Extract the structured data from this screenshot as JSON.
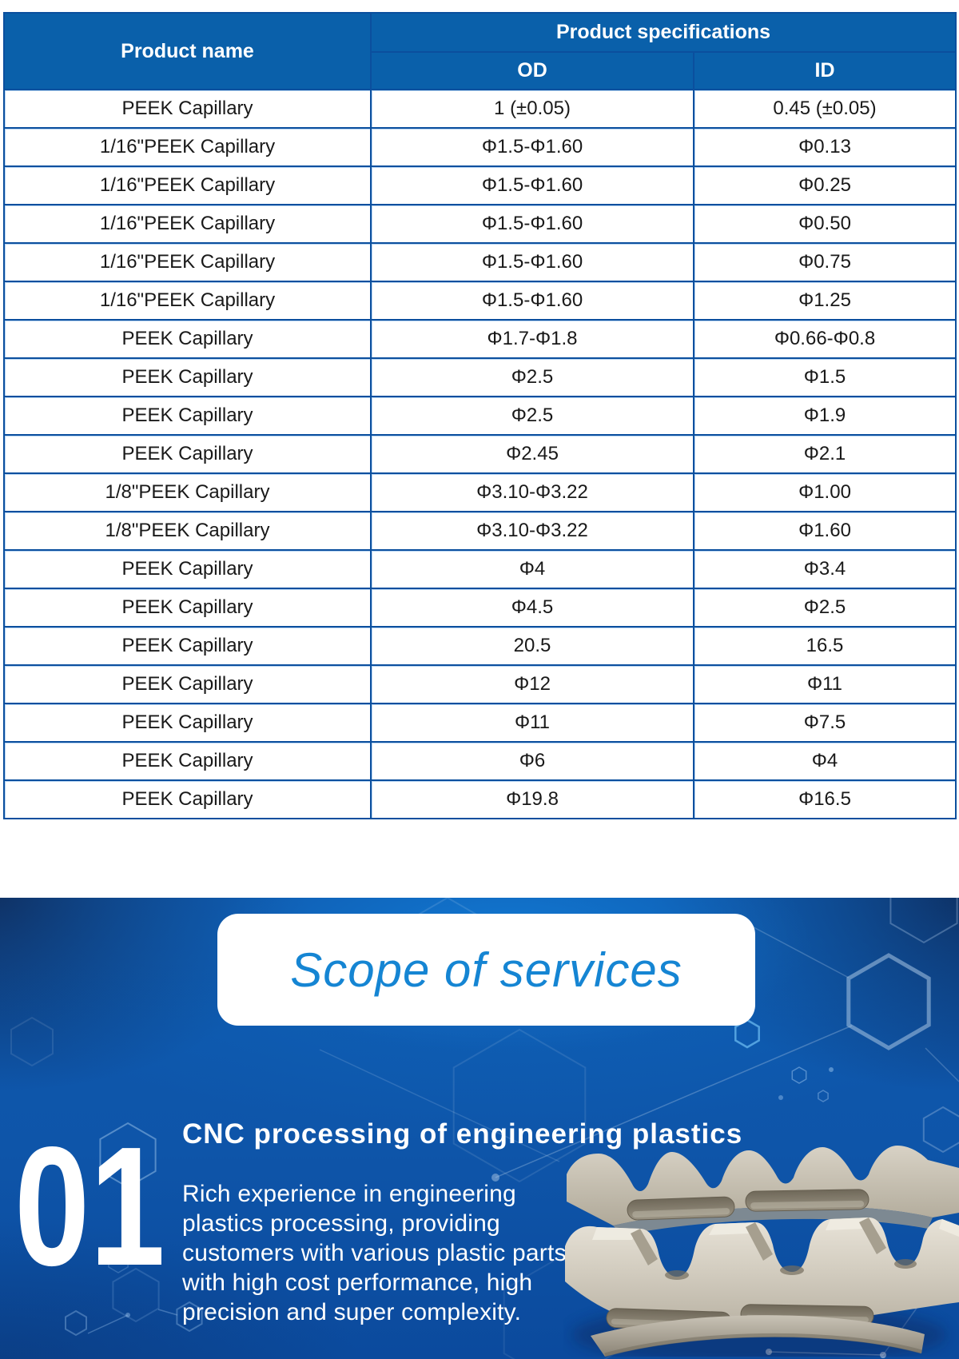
{
  "table": {
    "headers": {
      "product_name": "Product name",
      "product_specifications": "Product specifications",
      "od": "OD",
      "id": "ID"
    },
    "rows": [
      [
        "PEEK Capillary",
        "1 (±0.05)",
        "0.45 (±0.05)"
      ],
      [
        "1/16\"PEEK Capillary",
        "Φ1.5-Φ1.60",
        "Φ0.13"
      ],
      [
        "1/16\"PEEK Capillary",
        "Φ1.5-Φ1.60",
        "Φ0.25"
      ],
      [
        "1/16\"PEEK Capillary",
        "Φ1.5-Φ1.60",
        "Φ0.50"
      ],
      [
        "1/16\"PEEK Capillary",
        "Φ1.5-Φ1.60",
        "Φ0.75"
      ],
      [
        "1/16\"PEEK Capillary",
        "Φ1.5-Φ1.60",
        "Φ1.25"
      ],
      [
        "PEEK Capillary",
        "Φ1.7-Φ1.8",
        "Φ0.66-Φ0.8"
      ],
      [
        "PEEK Capillary",
        "Φ2.5",
        "Φ1.5"
      ],
      [
        "PEEK Capillary",
        "Φ2.5",
        "Φ1.9"
      ],
      [
        "PEEK Capillary",
        "Φ2.45",
        "Φ2.1"
      ],
      [
        "1/8\"PEEK Capillary",
        "Φ3.10-Φ3.22",
        "Φ1.00"
      ],
      [
        "1/8\"PEEK Capillary",
        "Φ3.10-Φ3.22",
        "Φ1.60"
      ],
      [
        "PEEK Capillary",
        "Φ4",
        "Φ3.4"
      ],
      [
        "PEEK Capillary",
        "Φ4.5",
        "Φ2.5"
      ],
      [
        "PEEK Capillary",
        "20.5",
        "16.5"
      ],
      [
        "PEEK Capillary",
        "Φ12",
        "Φ11"
      ],
      [
        "PEEK Capillary",
        "Φ11",
        "Φ7.5"
      ],
      [
        "PEEK Capillary",
        "Φ6",
        "Φ4"
      ],
      [
        "PEEK Capillary",
        "Φ19.8",
        "Φ16.5"
      ]
    ]
  },
  "services": {
    "banner_title": "Scope of services",
    "item_number": "01",
    "item_title": "CNC processing of engineering plastics",
    "item_description": "Rich experience in engineering plastics processing, providing customers with various plastic parts with high cost performance, high precision and super complexity."
  },
  "colors": {
    "table_header_bg": "#0a60aa",
    "table_border": "#0b4f9e",
    "table_border_light": "#b6d4f2",
    "banner_title_text": "#1585d3",
    "hero_text": "#ffffff",
    "hero_blue_bright": "#127cd6",
    "hero_blue_dark": "#0f254e",
    "part_beige": "#d5cfc2"
  }
}
